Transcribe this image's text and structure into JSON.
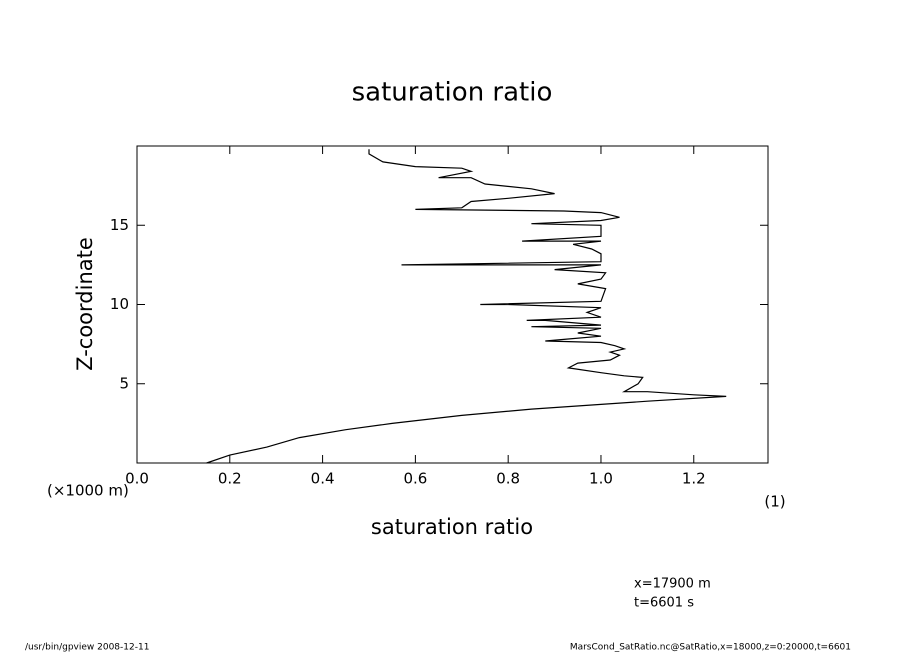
{
  "chart_data": {
    "type": "line",
    "title": "saturation ratio",
    "x_label": "saturation ratio",
    "y_label": "Z-coordinate",
    "y_unit": "(×1000 m)",
    "x_unit": "(1)",
    "annotations": [
      "x=17900 m",
      "t=6601 s"
    ],
    "footer_left": "/usr/bin/gpview   2008-12-11",
    "footer_right": "MarsCond_SatRatio.nc@SatRatio,x=18000,z=0:20000,t=6601",
    "color": "#000000",
    "xlim": [
      0,
      1.36
    ],
    "ylim": [
      0,
      20
    ],
    "xticks": [
      {
        "value": 0,
        "label": "0.0"
      },
      0.2,
      0.4,
      0.6,
      0.8,
      {
        "value": 1,
        "label": "1.0"
      },
      1.2
    ],
    "yticks": [
      5,
      10,
      15
    ],
    "x": [
      0.15,
      0.2,
      0.28,
      0.35,
      0.45,
      0.55,
      0.7,
      0.85,
      1.0,
      1.1,
      1.27,
      1.2,
      1.1,
      1.05,
      1.08,
      1.09,
      1.05,
      1.0,
      0.93,
      0.95,
      1.02,
      1.04,
      1.02,
      1.05,
      1.03,
      1.0,
      0.88,
      0.92,
      1.0,
      0.95,
      1.0,
      0.85,
      1.0,
      0.88,
      0.84,
      1.0,
      0.97,
      1.0,
      0.8,
      0.74,
      1.0,
      1.01,
      0.95,
      1.0,
      1.01,
      0.9,
      1.0,
      0.57,
      1.0,
      1.0,
      0.98,
      0.94,
      1.0,
      0.83,
      1.0,
      1.0,
      0.85,
      1.0,
      1.04,
      1.0,
      0.92,
      0.6,
      0.7,
      0.72,
      0.8,
      0.9,
      0.85,
      0.75,
      0.72,
      0.65,
      0.72,
      0.7,
      0.6,
      0.53,
      0.5,
      0.5
    ],
    "values": [
      0,
      0.5,
      1,
      1.6,
      2.1,
      2.5,
      3,
      3.4,
      3.7,
      3.9,
      4.2,
      4.3,
      4.5,
      4.5,
      5,
      5.4,
      5.5,
      5.7,
      6,
      6.3,
      6.5,
      6.8,
      7,
      7.2,
      7.4,
      7.6,
      7.7,
      7.8,
      8,
      8.2,
      8.5,
      8.6,
      8.7,
      9,
      9,
      9.2,
      9.5,
      9.8,
      10,
      10,
      10.2,
      11,
      11.3,
      11.6,
      12,
      12.2,
      12.5,
      12.5,
      12.7,
      13.2,
      13.5,
      13.8,
      14,
      14,
      14.3,
      15,
      15.1,
      15.3,
      15.5,
      15.8,
      15.9,
      16,
      16.1,
      16.5,
      16.7,
      17,
      17.3,
      17.6,
      18,
      18,
      18.4,
      18.6,
      18.7,
      19,
      19.5,
      19.8
    ]
  }
}
